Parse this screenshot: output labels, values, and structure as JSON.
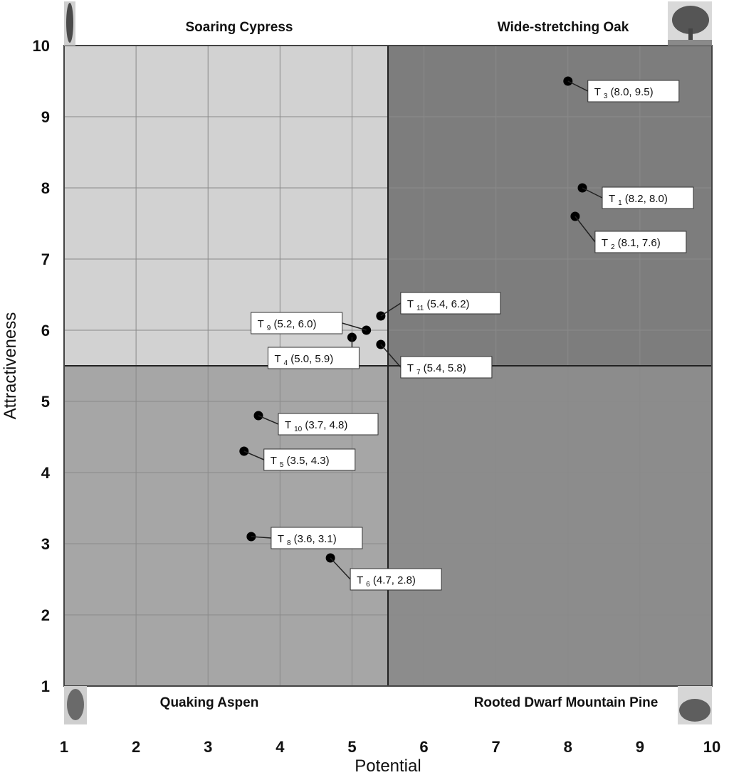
{
  "chart_data": {
    "type": "scatter",
    "xlabel": "Potential",
    "ylabel": "Attractiveness",
    "xlim": [
      1,
      10
    ],
    "ylim": [
      1,
      10
    ],
    "x_ticks": [
      "1",
      "2",
      "3",
      "4",
      "5",
      "6",
      "7",
      "8",
      "9",
      "10"
    ],
    "y_ticks": [
      "1",
      "2",
      "3",
      "4",
      "5",
      "6",
      "7",
      "8",
      "9",
      "10"
    ],
    "grid": true,
    "divider": {
      "x": 5.5,
      "y": 5.5
    },
    "quadrants": [
      {
        "name": "Soaring Cypress",
        "position": "top-left",
        "color": "#d2d2d2"
      },
      {
        "name": "Wide-stretching Oak",
        "position": "top-right",
        "color": "#7d7d7d"
      },
      {
        "name": "Quaking Aspen",
        "position": "bottom-left",
        "color": "#a6a6a6"
      },
      {
        "name": "Rooted Dwarf Mountain Pine",
        "position": "bottom-right",
        "color": "#8c8c8c"
      }
    ],
    "points": [
      {
        "label": "T",
        "sub": "3",
        "coords": "(8.0, 9.5)",
        "x": 8.0,
        "y": 9.5
      },
      {
        "label": "T",
        "sub": "1",
        "coords": "(8.2, 8.0)",
        "x": 8.2,
        "y": 8.0
      },
      {
        "label": "T",
        "sub": "2",
        "coords": "(8.1, 7.6)",
        "x": 8.1,
        "y": 7.6
      },
      {
        "label": "T",
        "sub": "11",
        "coords": "(5.4, 6.2)",
        "x": 5.4,
        "y": 6.2
      },
      {
        "label": "T",
        "sub": "9",
        "coords": "(5.2, 6.0)",
        "x": 5.2,
        "y": 6.0
      },
      {
        "label": "T",
        "sub": "4",
        "coords": "(5.0, 5.9)",
        "x": 5.0,
        "y": 5.9
      },
      {
        "label": "T",
        "sub": "7",
        "coords": "(5.4, 5.8)",
        "x": 5.4,
        "y": 5.8
      },
      {
        "label": "T",
        "sub": "10",
        "coords": "(3.7, 4.8)",
        "x": 3.7,
        "y": 4.8
      },
      {
        "label": "T",
        "sub": "5",
        "coords": "(3.5, 4.3)",
        "x": 3.5,
        "y": 4.3
      },
      {
        "label": "T",
        "sub": "8",
        "coords": "(3.6, 3.1)",
        "x": 3.6,
        "y": 3.1
      },
      {
        "label": "T",
        "sub": "6",
        "coords": "(4.7, 2.8)",
        "x": 4.7,
        "y": 2.8
      }
    ]
  }
}
